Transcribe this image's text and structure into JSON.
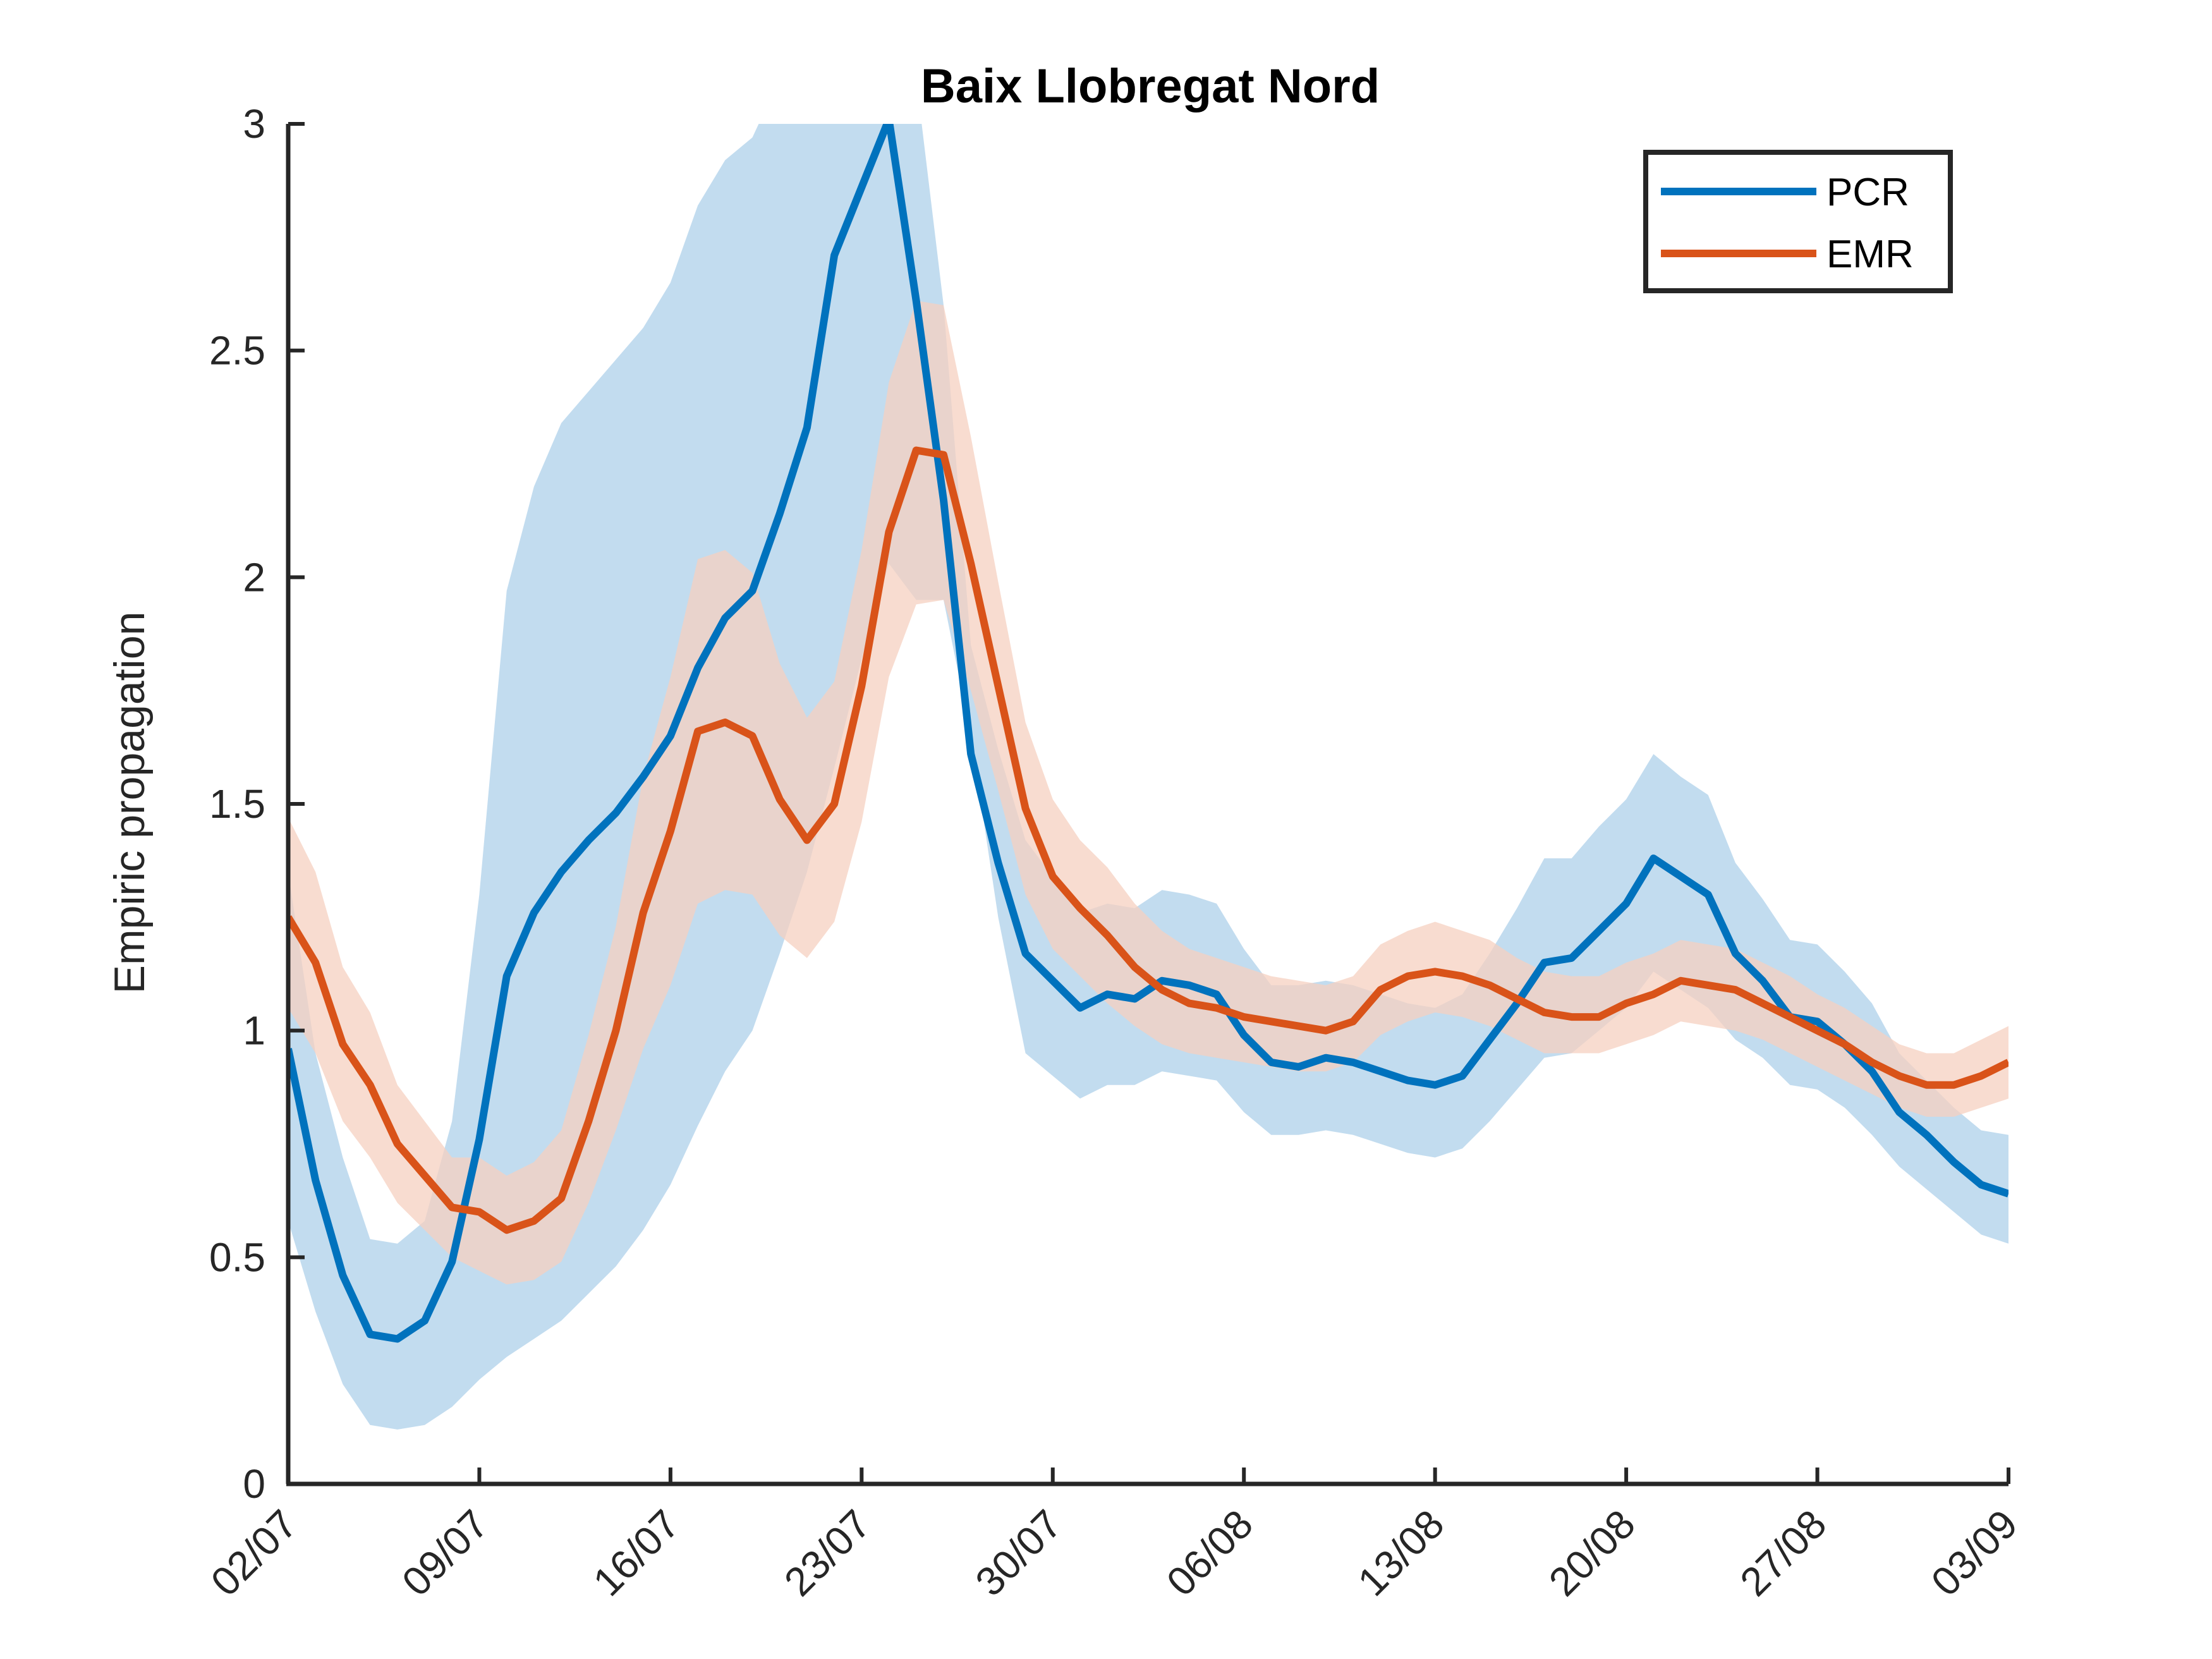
{
  "chart_data": {
    "type": "line",
    "title": "Baix Llobregat Nord",
    "xlabel": "",
    "ylabel": "Empiric propagation",
    "ylim": [
      0,
      3
    ],
    "yticks": [
      0,
      0.5,
      1,
      1.5,
      2,
      2.5,
      3
    ],
    "ytick_labels": [
      "0",
      "0.5",
      "1",
      "1.5",
      "2",
      "2.5",
      "3"
    ],
    "xlim": [
      "2020-07-02",
      "2020-09-03"
    ],
    "xticks": [
      "2020-07-02",
      "2020-07-09",
      "2020-07-16",
      "2020-07-23",
      "2020-07-30",
      "2020-08-06",
      "2020-08-13",
      "2020-08-20",
      "2020-08-27",
      "2020-09-03"
    ],
    "xtick_labels": [
      "02/07",
      "09/07",
      "16/07",
      "23/07",
      "30/07",
      "06/08",
      "13/08",
      "20/08",
      "27/08",
      "03/09"
    ],
    "grid": false,
    "legend": {
      "position": "top-right",
      "entries": [
        "PCR",
        "EMR"
      ]
    },
    "x": [
      "2020-07-02",
      "2020-07-03",
      "2020-07-04",
      "2020-07-05",
      "2020-07-06",
      "2020-07-07",
      "2020-07-08",
      "2020-07-09",
      "2020-07-10",
      "2020-07-11",
      "2020-07-12",
      "2020-07-13",
      "2020-07-14",
      "2020-07-15",
      "2020-07-16",
      "2020-07-17",
      "2020-07-18",
      "2020-07-19",
      "2020-07-20",
      "2020-07-21",
      "2020-07-22",
      "2020-07-23",
      "2020-07-24",
      "2020-07-25",
      "2020-07-26",
      "2020-07-27",
      "2020-07-28",
      "2020-07-29",
      "2020-07-30",
      "2020-07-31",
      "2020-08-01",
      "2020-08-02",
      "2020-08-03",
      "2020-08-04",
      "2020-08-05",
      "2020-08-06",
      "2020-08-07",
      "2020-08-08",
      "2020-08-09",
      "2020-08-10",
      "2020-08-11",
      "2020-08-12",
      "2020-08-13",
      "2020-08-14",
      "2020-08-15",
      "2020-08-16",
      "2020-08-17",
      "2020-08-18",
      "2020-08-19",
      "2020-08-20",
      "2020-08-21",
      "2020-08-22",
      "2020-08-23",
      "2020-08-24",
      "2020-08-25",
      "2020-08-26",
      "2020-08-27",
      "2020-08-28",
      "2020-08-29",
      "2020-08-30",
      "2020-08-31",
      "2020-09-01",
      "2020-09-02",
      "2020-09-03"
    ],
    "series": [
      {
        "name": "PCR",
        "color": "#0072BD",
        "band_color": "#C2DCEF",
        "values": [
          0.96,
          0.67,
          0.46,
          0.33,
          0.32,
          0.36,
          0.49,
          0.76,
          1.12,
          1.26,
          1.35,
          1.42,
          1.48,
          1.56,
          1.65,
          1.8,
          1.91,
          1.97,
          2.14,
          2.33,
          2.71,
          2.86,
          3.01,
          2.61,
          2.17,
          1.61,
          1.37,
          1.17,
          1.11,
          1.05,
          1.08,
          1.07,
          1.11,
          1.1,
          1.08,
          0.99,
          0.93,
          0.92,
          0.94,
          0.93,
          0.91,
          0.89,
          0.88,
          0.9,
          0.98,
          1.06,
          1.15,
          1.16,
          1.22,
          1.28,
          1.38,
          1.34,
          1.3,
          1.17,
          1.11,
          1.03,
          1.02,
          0.97,
          0.91,
          0.82,
          0.77,
          0.71,
          0.66,
          0.64
        ],
        "lower": [
          0.58,
          0.38,
          0.22,
          0.13,
          0.12,
          0.13,
          0.17,
          0.23,
          0.28,
          0.32,
          0.36,
          0.42,
          0.48,
          0.56,
          0.66,
          0.79,
          0.91,
          1.0,
          1.17,
          1.35,
          1.58,
          1.82,
          2.03,
          1.95,
          1.95,
          1.65,
          1.25,
          0.95,
          0.9,
          0.85,
          0.88,
          0.88,
          0.91,
          0.9,
          0.89,
          0.82,
          0.77,
          0.77,
          0.78,
          0.77,
          0.75,
          0.73,
          0.72,
          0.74,
          0.8,
          0.87,
          0.94,
          0.95,
          1.0,
          1.05,
          1.13,
          1.09,
          1.05,
          0.98,
          0.94,
          0.88,
          0.87,
          0.83,
          0.77,
          0.7,
          0.65,
          0.6,
          0.55,
          0.53
        ],
        "upper": [
          1.35,
          0.95,
          0.72,
          0.54,
          0.53,
          0.58,
          0.8,
          1.3,
          1.97,
          2.2,
          2.34,
          2.41,
          2.48,
          2.55,
          2.65,
          2.82,
          2.92,
          2.97,
          3.1,
          3.1,
          3.1,
          3.1,
          3.1,
          3.1,
          2.6,
          1.85,
          1.62,
          1.42,
          1.34,
          1.26,
          1.28,
          1.27,
          1.31,
          1.3,
          1.28,
          1.18,
          1.1,
          1.1,
          1.11,
          1.1,
          1.08,
          1.06,
          1.05,
          1.08,
          1.17,
          1.27,
          1.38,
          1.38,
          1.45,
          1.51,
          1.61,
          1.56,
          1.52,
          1.37,
          1.29,
          1.2,
          1.19,
          1.13,
          1.06,
          0.95,
          0.89,
          0.83,
          0.78,
          0.77
        ]
      },
      {
        "name": "EMR",
        "color": "#D95319",
        "band_color": "#F6D0C0",
        "values": [
          1.25,
          1.15,
          0.97,
          0.88,
          0.75,
          0.68,
          0.61,
          0.6,
          0.56,
          0.58,
          0.63,
          0.8,
          1.0,
          1.26,
          1.44,
          1.66,
          1.68,
          1.65,
          1.51,
          1.42,
          1.5,
          1.76,
          2.1,
          2.28,
          2.27,
          2.03,
          1.76,
          1.49,
          1.34,
          1.27,
          1.21,
          1.14,
          1.09,
          1.06,
          1.05,
          1.03,
          1.02,
          1.01,
          1.0,
          1.02,
          1.09,
          1.12,
          1.13,
          1.12,
          1.1,
          1.07,
          1.04,
          1.03,
          1.03,
          1.06,
          1.08,
          1.11,
          1.1,
          1.09,
          1.06,
          1.03,
          1.0,
          0.97,
          0.93,
          0.9,
          0.88,
          0.88,
          0.9,
          0.93
        ],
        "lower": [
          1.05,
          0.95,
          0.8,
          0.72,
          0.62,
          0.56,
          0.5,
          0.47,
          0.44,
          0.45,
          0.49,
          0.62,
          0.78,
          0.96,
          1.1,
          1.28,
          1.31,
          1.3,
          1.21,
          1.16,
          1.24,
          1.46,
          1.78,
          1.94,
          1.95,
          1.75,
          1.53,
          1.3,
          1.18,
          1.12,
          1.06,
          1.01,
          0.97,
          0.95,
          0.94,
          0.93,
          0.92,
          0.91,
          0.91,
          0.93,
          0.99,
          1.02,
          1.04,
          1.03,
          1.01,
          0.98,
          0.95,
          0.95,
          0.95,
          0.97,
          0.99,
          1.02,
          1.01,
          1.0,
          0.98,
          0.95,
          0.92,
          0.89,
          0.86,
          0.83,
          0.81,
          0.81,
          0.83,
          0.85
        ],
        "upper": [
          1.47,
          1.35,
          1.14,
          1.04,
          0.88,
          0.8,
          0.72,
          0.72,
          0.68,
          0.71,
          0.78,
          0.99,
          1.23,
          1.56,
          1.78,
          2.04,
          2.06,
          2.01,
          1.81,
          1.69,
          1.77,
          2.06,
          2.43,
          2.61,
          2.6,
          2.31,
          1.99,
          1.68,
          1.51,
          1.42,
          1.36,
          1.28,
          1.22,
          1.18,
          1.16,
          1.14,
          1.12,
          1.11,
          1.1,
          1.12,
          1.19,
          1.22,
          1.24,
          1.22,
          1.2,
          1.16,
          1.13,
          1.12,
          1.12,
          1.15,
          1.17,
          1.2,
          1.19,
          1.18,
          1.15,
          1.12,
          1.08,
          1.05,
          1.01,
          0.97,
          0.95,
          0.95,
          0.98,
          1.01
        ]
      }
    ]
  }
}
